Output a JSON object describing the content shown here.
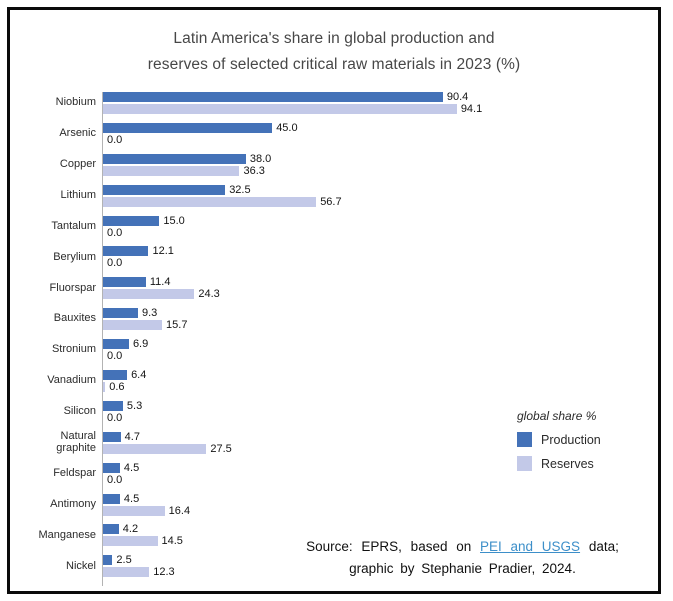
{
  "title": {
    "line1": "Latin America's share in global production and",
    "line2": "reserves of selected critical raw materials in 2023 (%)"
  },
  "chart_data": {
    "type": "bar",
    "orientation": "horizontal",
    "title": "Latin America's share in global production and reserves of selected critical raw materials in 2023 (%)",
    "categories": [
      "Niobium",
      "Arsenic",
      "Copper",
      "Lithium",
      "Tantalum",
      "Berylium",
      "Fluorspar",
      "Bauxites",
      "Stronium",
      "Vanadium",
      "Silicon",
      "Natural graphite",
      "Feldspar",
      "Antimony",
      "Manganese",
      "Nickel"
    ],
    "series": [
      {
        "name": "Production",
        "color": "#4472b8",
        "values": [
          90.4,
          45.0,
          38.0,
          32.5,
          15.0,
          12.1,
          11.4,
          9.3,
          6.9,
          6.4,
          5.3,
          4.7,
          4.5,
          4.5,
          4.2,
          2.5
        ]
      },
      {
        "name": "Reserves",
        "color": "#c3c9e8",
        "values": [
          94.1,
          0.0,
          36.3,
          56.7,
          0.0,
          0.0,
          24.3,
          15.7,
          0.0,
          0.6,
          0.0,
          27.5,
          0.0,
          16.4,
          14.5,
          12.3
        ]
      }
    ],
    "value_labels": "one_decimal",
    "xlim": [
      0,
      100
    ],
    "grid": false,
    "legend_position": "right-middle"
  },
  "legend": {
    "title": "global share %",
    "items": [
      {
        "label": "Production",
        "color": "#4472b8"
      },
      {
        "label": "Reserves",
        "color": "#c3c9e8"
      }
    ]
  },
  "source": {
    "prefix": "Source: EPRS, based on",
    "link_text": "PEI and USGS",
    "suffix": "data;",
    "line2": "graphic by Stephanie Pradier, 2024."
  },
  "colors": {
    "production": "#4472b8",
    "reserves": "#c3c9e8",
    "link": "#3d8fc9",
    "axis": "#b3b3b3",
    "title_text": "#474747",
    "border": "#0a0a0a"
  }
}
